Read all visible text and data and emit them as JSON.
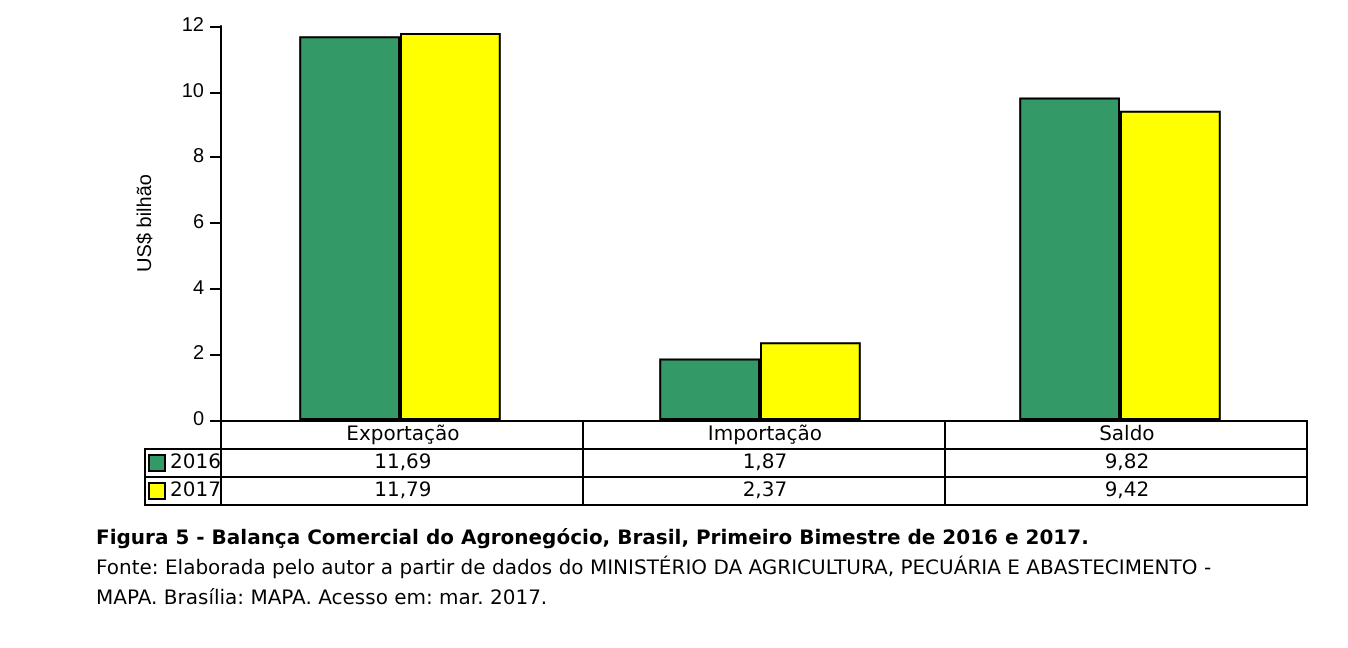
{
  "chart_data": {
    "type": "bar",
    "title": "Figura 5 - Balança Comercial do Agronegócio, Brasil, Primeiro Bimestre de 2016 e 2017.",
    "ylabel": "US$ bilhão",
    "categories": [
      "Exportação",
      "Importação",
      "Saldo"
    ],
    "series": [
      {
        "name": "2016",
        "color": "#339966",
        "values": [
          11.69,
          1.87,
          9.82
        ],
        "value_labels": [
          "11,69",
          "1,87",
          "9,82"
        ]
      },
      {
        "name": "2017",
        "color": "#ffff00",
        "values": [
          11.79,
          2.37,
          9.42
        ],
        "value_labels": [
          "11,79",
          "2,37",
          "9,42"
        ]
      }
    ],
    "ylim": [
      0,
      12
    ],
    "yticks": [
      0,
      2,
      4,
      6,
      8,
      10,
      12
    ],
    "grid": false,
    "legend": "bottom left",
    "annotations": [
      "Fonte: Elaborada pelo autor a partir de dados do MINISTÉRIO DA AGRICULTURA, PECUÁRIA E ABASTECIMENTO - MAPA. Brasília: MAPA. Acesso em: mar. 2017."
    ]
  }
}
